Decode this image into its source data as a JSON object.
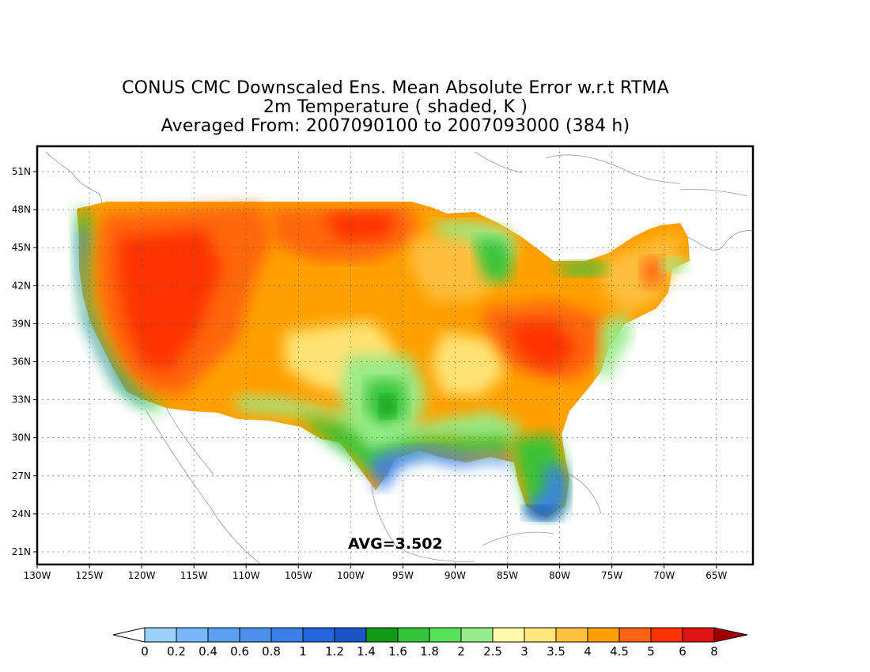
{
  "title": {
    "line1": "CONUS CMC Downscaled Ens. Mean Absolute Error w.r.t RTMA",
    "line2": "2m Temperature ( shaded, K )",
    "line3": "Averaged From: 2007090100 to 2007093000 (384 h)"
  },
  "annotation": {
    "avg_text": "AVG=3.502"
  },
  "axes": {
    "lat_labels": [
      "51N",
      "48N",
      "45N",
      "42N",
      "39N",
      "36N",
      "33N",
      "30N",
      "27N",
      "24N",
      "21N"
    ],
    "lon_labels": [
      "130W",
      "125W",
      "120W",
      "115W",
      "110W",
      "105W",
      "100W",
      "95W",
      "90W",
      "85W",
      "80W",
      "75W",
      "70W",
      "65W"
    ],
    "lat_range": [
      20,
      53
    ],
    "lon_range": [
      -130,
      -61.5
    ],
    "grid": "dotted"
  },
  "colorbar": {
    "labels": [
      "0",
      "0.2",
      "0.4",
      "0.6",
      "0.8",
      "1",
      "1.2",
      "1.4",
      "1.6",
      "1.8",
      "2",
      "2.5",
      "3",
      "3.5",
      "4",
      "4.5",
      "5",
      "6",
      "8"
    ],
    "colors": [
      "#9ad2fa",
      "#78b8f8",
      "#5aa0f2",
      "#4a90ec",
      "#3a80e8",
      "#2266dc",
      "#1a54c8",
      "#0f9a16",
      "#33c43b",
      "#56e25a",
      "#96ec8a",
      "#fffaaa",
      "#ffe67a",
      "#ffc040",
      "#ffa000",
      "#ff6410",
      "#ff3200",
      "#e11414"
    ],
    "under_color": "#ffffff",
    "over_color": "#a50000"
  },
  "map_colors": {
    "high": "#ff6410",
    "very_high": "#ff3200",
    "mid": "#ffa000",
    "moderate": "#ffc040",
    "low_mid": "#ffe67a",
    "low": "#96ec8a",
    "green": "#33c43b",
    "dark_green": "#0f9a16",
    "blue": "#3a80e8",
    "dark_blue": "#1a54c8"
  }
}
